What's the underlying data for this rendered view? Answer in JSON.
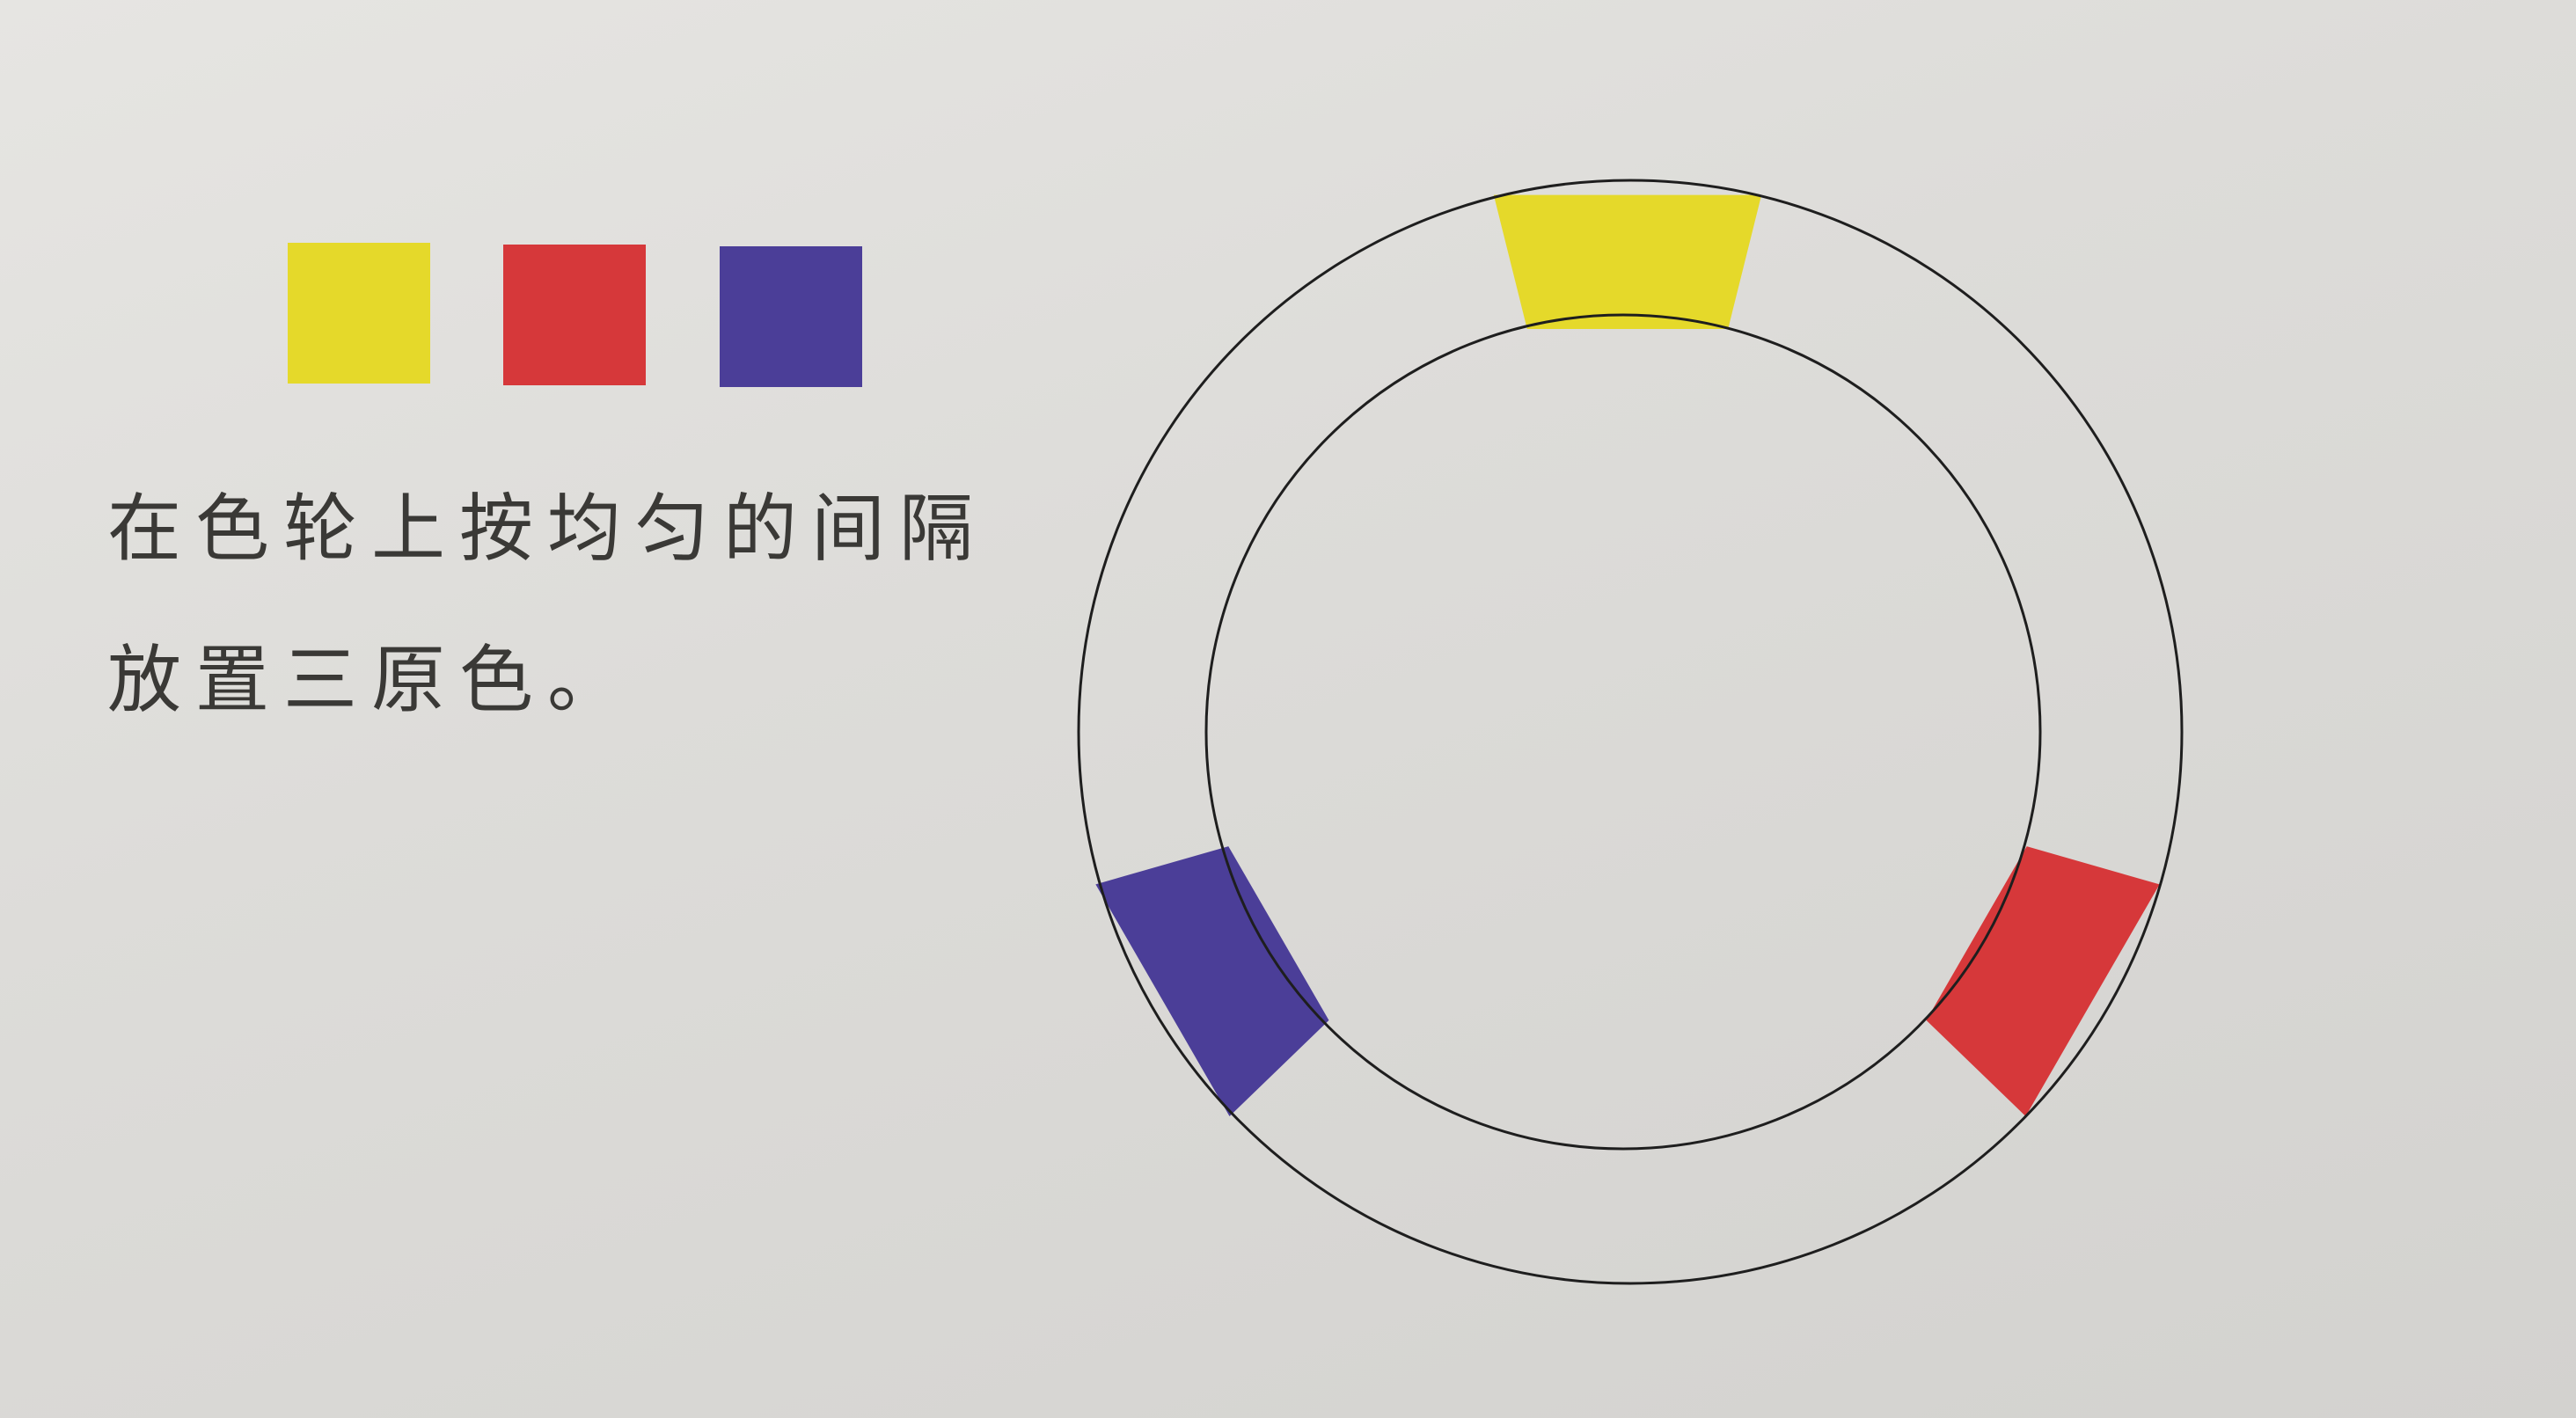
{
  "caption": {
    "line1": "在色轮上按均匀的间隔",
    "line2": "放置三原色。"
  },
  "colors": {
    "yellow": "#e5d92a",
    "red": "#d6383a",
    "blue": "#4b3e98",
    "ring_stroke": "#1e1e1e"
  },
  "swatches": [
    {
      "name": "yellow"
    },
    {
      "name": "red"
    },
    {
      "name": "blue"
    }
  ],
  "wheel_segments": [
    {
      "name": "yellow",
      "angle": 0
    },
    {
      "name": "red",
      "angle": 120
    },
    {
      "name": "blue",
      "angle": 240
    }
  ]
}
